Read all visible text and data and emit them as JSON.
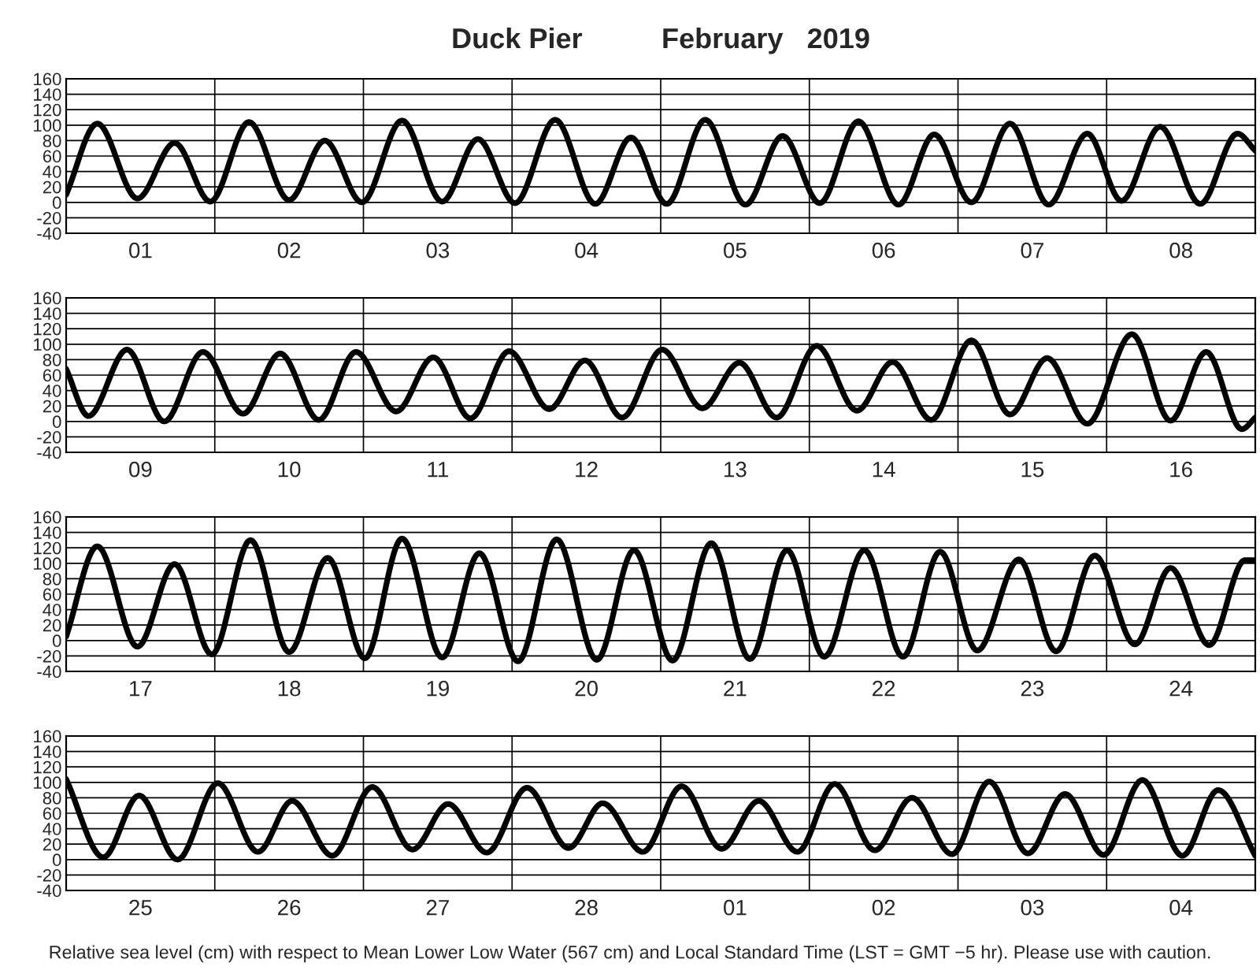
{
  "chart_data": [
    {
      "type": "line",
      "title": "Duck Pier          February   2019",
      "color": "#000000",
      "grid": true,
      "marker": "none",
      "line_style": "solid",
      "xlim": [
        "2019-02-01T00:00",
        "2019-02-09T00:00"
      ],
      "ylim": [
        -40,
        160
      ],
      "yticks": [
        -40,
        -20,
        0,
        20,
        40,
        60,
        80,
        100,
        120,
        140,
        160
      ],
      "xticks": [
        {
          "value": "2019-02-02T00:00",
          "label": null
        },
        {
          "value": "2019-02-03T00:00",
          "label": null
        },
        {
          "value": "2019-02-04T00:00",
          "label": null
        },
        {
          "value": "2019-02-05T00:00",
          "label": null
        },
        {
          "value": "2019-02-06T00:00",
          "label": null
        },
        {
          "value": "2019-02-07T00:00",
          "label": null
        },
        {
          "value": "2019-02-08T00:00",
          "label": null
        },
        {
          "value": "2019-02-01T12:00",
          "label": "01"
        },
        {
          "value": "2019-02-02T12:00",
          "label": "02"
        },
        {
          "value": "2019-02-03T12:00",
          "label": "03"
        },
        {
          "value": "2019-02-04T12:00",
          "label": "04"
        },
        {
          "value": "2019-02-05T12:00",
          "label": "05"
        },
        {
          "value": "2019-02-06T12:00",
          "label": "06"
        },
        {
          "value": "2019-02-07T12:00",
          "label": "07"
        },
        {
          "value": "2019-02-08T12:00",
          "label": "08"
        }
      ],
      "x": [
        "2019-02-01T00:00",
        "2019-02-01T05:02",
        "2019-02-01T11:31",
        "2019-02-01T17:31",
        "2019-02-01T23:17",
        "2019-02-02T05:31",
        "2019-02-02T12:00",
        "2019-02-02T17:46",
        "2019-02-02T23:46",
        "2019-02-03T06:14",
        "2019-02-03T12:43",
        "2019-02-03T18:29",
        "2019-02-04T00:29",
        "2019-02-04T06:58",
        "2019-02-04T13:26",
        "2019-02-04T19:12",
        "2019-02-05T00:58",
        "2019-02-05T07:12",
        "2019-02-05T13:41",
        "2019-02-05T19:41",
        "2019-02-06T01:41",
        "2019-02-06T07:55",
        "2019-02-06T14:24",
        "2019-02-06T20:10",
        "2019-02-07T02:10",
        "2019-02-07T08:24",
        "2019-02-07T14:38",
        "2019-02-07T20:53",
        "2019-02-08T02:24",
        "2019-02-08T08:38",
        "2019-02-08T15:07",
        "2019-02-08T21:07",
        "2019-02-09T00:00"
      ],
      "values": [
        10,
        102,
        5,
        77,
        1,
        104,
        3,
        80,
        0,
        106,
        1,
        82,
        -1,
        107,
        -2,
        84,
        -2,
        107,
        -3,
        86,
        -1,
        105,
        -3,
        88,
        0,
        102,
        -3,
        89,
        2,
        98,
        -2,
        89,
        67
      ]
    },
    {
      "type": "line",
      "color": "#000000",
      "grid": true,
      "marker": "none",
      "line_style": "solid",
      "xlim": [
        "2019-02-09T00:00",
        "2019-02-17T00:00"
      ],
      "ylim": [
        -40,
        160
      ],
      "yticks": [
        -40,
        -20,
        0,
        20,
        40,
        60,
        80,
        100,
        120,
        140,
        160
      ],
      "xticks": [
        {
          "value": "2019-02-10T00:00",
          "label": null
        },
        {
          "value": "2019-02-11T00:00",
          "label": null
        },
        {
          "value": "2019-02-12T00:00",
          "label": null
        },
        {
          "value": "2019-02-13T00:00",
          "label": null
        },
        {
          "value": "2019-02-14T00:00",
          "label": null
        },
        {
          "value": "2019-02-15T00:00",
          "label": null
        },
        {
          "value": "2019-02-16T00:00",
          "label": null
        },
        {
          "value": "2019-02-09T12:00",
          "label": "09"
        },
        {
          "value": "2019-02-10T12:00",
          "label": "10"
        },
        {
          "value": "2019-02-11T12:00",
          "label": "11"
        },
        {
          "value": "2019-02-12T12:00",
          "label": "12"
        },
        {
          "value": "2019-02-13T12:00",
          "label": "13"
        },
        {
          "value": "2019-02-14T12:00",
          "label": "14"
        },
        {
          "value": "2019-02-15T12:00",
          "label": "15"
        },
        {
          "value": "2019-02-16T12:00",
          "label": "16"
        }
      ],
      "x": [
        "2019-02-09T00:00",
        "2019-02-09T03:36",
        "2019-02-09T09:50",
        "2019-02-09T15:50",
        "2019-02-09T22:05",
        "2019-02-10T04:34",
        "2019-02-10T10:34",
        "2019-02-10T16:48",
        "2019-02-10T22:48",
        "2019-02-11T05:17",
        "2019-02-11T11:17",
        "2019-02-11T17:17",
        "2019-02-11T23:31",
        "2019-02-12T06:00",
        "2019-02-12T11:46",
        "2019-02-12T17:46",
        "2019-02-13T00:14",
        "2019-02-13T06:43",
        "2019-02-13T12:43",
        "2019-02-13T18:43",
        "2019-02-14T01:12",
        "2019-02-14T07:41",
        "2019-02-14T13:26",
        "2019-02-14T19:41",
        "2019-02-15T02:10",
        "2019-02-15T08:24",
        "2019-02-15T14:24",
        "2019-02-15T20:53",
        "2019-02-16T04:05",
        "2019-02-16T10:19",
        "2019-02-16T16:05",
        "2019-02-16T21:50",
        "2019-02-17T00:00"
      ],
      "values": [
        68,
        7,
        93,
        0,
        90,
        10,
        88,
        2,
        90,
        13,
        83,
        4,
        91,
        16,
        79,
        5,
        93,
        17,
        76,
        5,
        98,
        14,
        77,
        2,
        105,
        9,
        82,
        -3,
        113,
        1,
        90,
        -10,
        5
      ]
    },
    {
      "type": "line",
      "color": "#000000",
      "grid": true,
      "marker": "none",
      "line_style": "solid",
      "xlim": [
        "2019-02-17T00:00",
        "2019-02-25T00:00"
      ],
      "ylim": [
        -40,
        160
      ],
      "yticks": [
        -40,
        -20,
        0,
        20,
        40,
        60,
        80,
        100,
        120,
        140,
        160
      ],
      "xticks": [
        {
          "value": "2019-02-18T00:00",
          "label": null
        },
        {
          "value": "2019-02-19T00:00",
          "label": null
        },
        {
          "value": "2019-02-20T00:00",
          "label": null
        },
        {
          "value": "2019-02-21T00:00",
          "label": null
        },
        {
          "value": "2019-02-22T00:00",
          "label": null
        },
        {
          "value": "2019-02-23T00:00",
          "label": null
        },
        {
          "value": "2019-02-24T00:00",
          "label": null
        },
        {
          "value": "2019-02-17T12:00",
          "label": "17"
        },
        {
          "value": "2019-02-18T12:00",
          "label": "18"
        },
        {
          "value": "2019-02-19T12:00",
          "label": "19"
        },
        {
          "value": "2019-02-20T12:00",
          "label": "20"
        },
        {
          "value": "2019-02-21T12:00",
          "label": "21"
        },
        {
          "value": "2019-02-22T12:00",
          "label": "22"
        },
        {
          "value": "2019-02-23T12:00",
          "label": "23"
        },
        {
          "value": "2019-02-24T12:00",
          "label": "24"
        }
      ],
      "x": [
        "2019-02-17T00:00",
        "2019-02-17T05:02",
        "2019-02-17T11:31",
        "2019-02-17T17:31",
        "2019-02-17T23:31",
        "2019-02-18T05:46",
        "2019-02-18T12:00",
        "2019-02-18T18:14",
        "2019-02-19T00:14",
        "2019-02-19T06:14",
        "2019-02-19T12:43",
        "2019-02-19T18:43",
        "2019-02-20T00:58",
        "2019-02-20T07:12",
        "2019-02-20T13:41",
        "2019-02-20T19:41",
        "2019-02-21T01:55",
        "2019-02-21T08:10",
        "2019-02-21T14:24",
        "2019-02-21T20:24",
        "2019-02-22T02:24",
        "2019-02-22T08:53",
        "2019-02-22T15:07",
        "2019-02-22T21:07",
        "2019-02-23T03:07",
        "2019-02-23T09:50",
        "2019-02-23T15:50",
        "2019-02-23T22:05",
        "2019-02-24T04:34",
        "2019-02-24T10:19",
        "2019-02-24T16:34",
        "2019-02-24T22:19",
        "2019-02-25T00:00"
      ],
      "values": [
        5,
        122,
        -8,
        99,
        -18,
        130,
        -15,
        107,
        -23,
        132,
        -22,
        113,
        -27,
        131,
        -25,
        117,
        -26,
        126,
        -24,
        117,
        -21,
        117,
        -21,
        115,
        -13,
        105,
        -14,
        110,
        -5,
        94,
        -6,
        104,
        104
      ]
    },
    {
      "type": "line",
      "color": "#000000",
      "grid": true,
      "marker": "none",
      "line_style": "solid",
      "xlim": [
        "2019-02-25T00:00",
        "2019-03-05T00:00"
      ],
      "ylim": [
        -40,
        160
      ],
      "yticks": [
        -40,
        -20,
        0,
        20,
        40,
        60,
        80,
        100,
        120,
        140,
        160
      ],
      "xticks": [
        {
          "value": "2019-02-26T00:00",
          "label": null
        },
        {
          "value": "2019-02-27T00:00",
          "label": null
        },
        {
          "value": "2019-02-28T00:00",
          "label": null
        },
        {
          "value": "2019-03-01T00:00",
          "label": null
        },
        {
          "value": "2019-03-02T00:00",
          "label": null
        },
        {
          "value": "2019-03-03T00:00",
          "label": null
        },
        {
          "value": "2019-03-04T00:00",
          "label": null
        },
        {
          "value": "2019-02-25T12:00",
          "label": "25"
        },
        {
          "value": "2019-02-26T12:00",
          "label": "26"
        },
        {
          "value": "2019-02-27T12:00",
          "label": "27"
        },
        {
          "value": "2019-02-28T12:00",
          "label": "28"
        },
        {
          "value": "2019-03-01T12:00",
          "label": "01"
        },
        {
          "value": "2019-03-02T12:00",
          "label": "02"
        },
        {
          "value": "2019-03-03T12:00",
          "label": "03"
        },
        {
          "value": "2019-03-04T12:00",
          "label": "04"
        }
      ],
      "x": [
        "2019-02-25T00:00",
        "2019-02-25T06:00",
        "2019-02-25T11:46",
        "2019-02-25T18:00",
        "2019-02-26T00:29",
        "2019-02-26T06:58",
        "2019-02-26T12:29",
        "2019-02-26T18:58",
        "2019-02-27T01:26",
        "2019-02-27T07:55",
        "2019-02-27T13:41",
        "2019-02-27T19:55",
        "2019-02-28T02:24",
        "2019-02-28T09:07",
        "2019-02-28T14:38",
        "2019-02-28T21:07",
        "2019-03-01T03:22",
        "2019-03-01T09:50",
        "2019-03-01T15:50",
        "2019-03-01T22:05",
        "2019-03-02T04:05",
        "2019-03-02T10:34",
        "2019-03-02T16:34",
        "2019-03-02T23:02",
        "2019-03-03T05:02",
        "2019-03-03T11:17",
        "2019-03-03T17:17",
        "2019-03-03T23:31",
        "2019-03-04T05:46",
        "2019-03-04T12:14",
        "2019-03-04T18:00",
        "2019-03-05T00:00"
      ],
      "values": [
        104,
        3,
        83,
        0,
        99,
        10,
        76,
        5,
        94,
        13,
        72,
        9,
        93,
        15,
        73,
        10,
        95,
        14,
        76,
        10,
        98,
        12,
        80,
        7,
        101,
        8,
        85,
        6,
        103,
        5,
        90,
        5
      ],
      "annotations": [
        "Relative sea level (cm) with respect to Mean Lower Low Water (567 cm) and Local Standard Time (LST = GMT −5 hr). Please use with caution."
      ]
    }
  ]
}
